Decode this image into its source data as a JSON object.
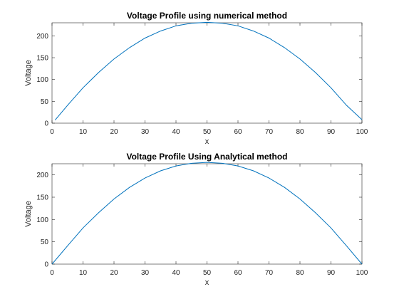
{
  "chart_data": [
    {
      "type": "line",
      "title": "Voltage Profile using numerical method",
      "xlabel": "x",
      "ylabel": "Voltage",
      "xlim": [
        0,
        100
      ],
      "ylim": [
        0,
        230
      ],
      "xticks": [
        "0",
        "10",
        "20",
        "30",
        "40",
        "50",
        "60",
        "70",
        "80",
        "90",
        "100"
      ],
      "yticks": [
        "0",
        "50",
        "100",
        "150",
        "200"
      ],
      "grid": false,
      "series": [
        {
          "color": "#0072bd",
          "x": [
            1,
            5,
            10,
            15,
            20,
            25,
            30,
            35,
            40,
            45,
            50,
            55,
            60,
            65,
            70,
            75,
            80,
            85,
            90,
            95,
            100
          ],
          "y": [
            7,
            41,
            81,
            116,
            147,
            173,
            195,
            211,
            223,
            229,
            231,
            229,
            223,
            211,
            195,
            173,
            147,
            116,
            81,
            41,
            8
          ]
        }
      ]
    },
    {
      "type": "line",
      "title": "Voltage Profile Using Analytical method",
      "xlabel": "x",
      "ylabel": "Voltage",
      "xlim": [
        0,
        100
      ],
      "ylim": [
        0,
        225
      ],
      "xticks": [
        "0",
        "10",
        "20",
        "30",
        "40",
        "50",
        "60",
        "70",
        "80",
        "90",
        "100"
      ],
      "yticks": [
        "0",
        "50",
        "100",
        "150",
        "200"
      ],
      "grid": false,
      "series": [
        {
          "color": "#0072bd",
          "x": [
            0,
            5,
            10,
            15,
            20,
            25,
            30,
            35,
            40,
            45,
            50,
            55,
            60,
            65,
            70,
            75,
            80,
            85,
            90,
            95,
            100
          ],
          "y": [
            0,
            41,
            81,
            115,
            146,
            172,
            193,
            209,
            220,
            226,
            228,
            226,
            220,
            209,
            193,
            172,
            146,
            115,
            81,
            41,
            0
          ]
        }
      ]
    }
  ]
}
